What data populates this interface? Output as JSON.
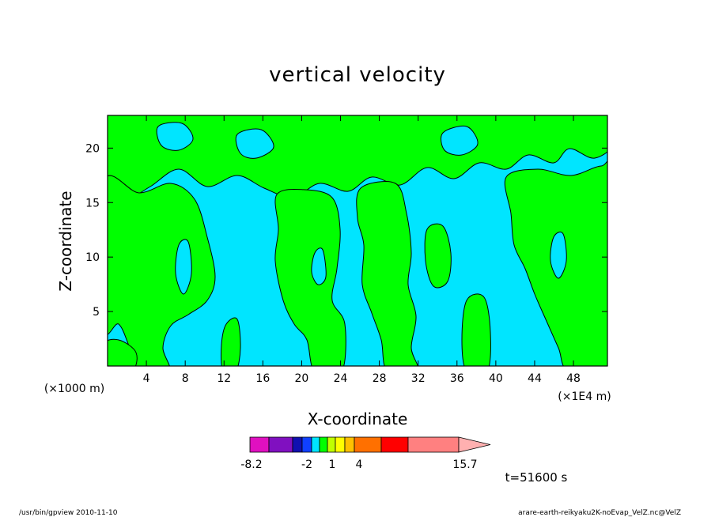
{
  "chart_data": {
    "type": "heatmap",
    "title": "vertical velocity",
    "xlabel": "X-coordinate",
    "ylabel": "Z-coordinate",
    "x_unit_left": "(×1000 m)",
    "x_unit_right": "(×1E4 m)",
    "xlim": [
      0,
      51.5
    ],
    "ylim": [
      0,
      23
    ],
    "x_ticks": [
      "4",
      "8",
      "12",
      "16",
      "20",
      "24",
      "28",
      "32",
      "36",
      "40",
      "44",
      "48"
    ],
    "y_ticks": [
      "5",
      "10",
      "15",
      "20"
    ],
    "colors": {
      "background_field": "#00e5ff",
      "positive_field": "#00ff00",
      "contour": "#000000"
    },
    "colorbar": {
      "colors": [
        "#e010c0",
        "#8010c0",
        "#1010b0",
        "#1040ff",
        "#00e5ff",
        "#00ff00",
        "#c0ff00",
        "#ffff00",
        "#ffc000",
        "#ff7000",
        "#ff0000",
        "#ff8080",
        "#ffb0b0"
      ],
      "tick_labels": [
        "-8.2",
        "-2",
        "1",
        "4",
        "15.7"
      ]
    },
    "time_label": "t=51600 s"
  },
  "footer": {
    "left": "/usr/bin/gpview   2010-11-10",
    "right": "arare-earth-reikyaku2K-noEvap_VelZ.nc@VelZ"
  }
}
